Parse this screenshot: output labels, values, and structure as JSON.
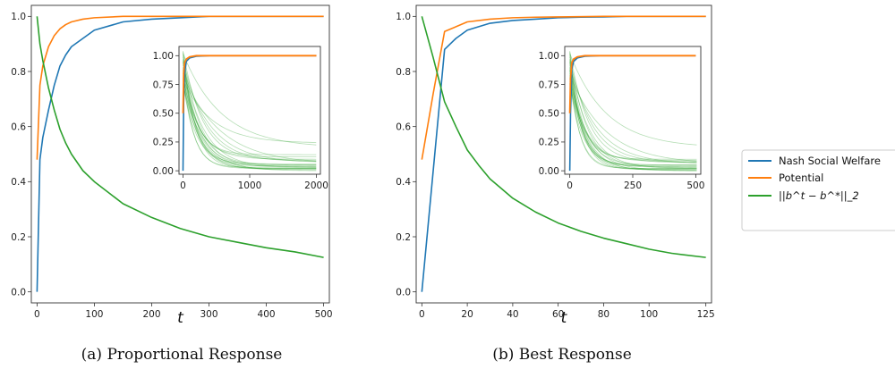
{
  "chart_data": [
    {
      "type": "line",
      "caption": "(a) Proportional Response",
      "xlabel": "t",
      "xlim": [
        -10,
        510
      ],
      "ylim": [
        -0.04,
        1.04
      ],
      "xticks": [
        0,
        100,
        200,
        300,
        400,
        500
      ],
      "yticks": [
        0.0,
        0.2,
        0.4,
        0.6,
        0.8,
        1.0
      ],
      "series": [
        {
          "name": "Nash Social Welfare",
          "color": "#1f77b4",
          "x": [
            0,
            5,
            10,
            20,
            30,
            40,
            50,
            60,
            80,
            100,
            150,
            200,
            300,
            400,
            500
          ],
          "y": [
            0.0,
            0.48,
            0.56,
            0.66,
            0.75,
            0.82,
            0.86,
            0.89,
            0.92,
            0.95,
            0.98,
            0.99,
            1.0,
            1.0,
            1.0
          ]
        },
        {
          "name": "Potential",
          "color": "#ff7f0e",
          "x": [
            0,
            5,
            10,
            20,
            30,
            40,
            50,
            60,
            80,
            100,
            150,
            200,
            300,
            400,
            500
          ],
          "y": [
            0.48,
            0.75,
            0.82,
            0.89,
            0.93,
            0.955,
            0.97,
            0.98,
            0.99,
            0.995,
            1.0,
            1.0,
            1.0,
            1.0,
            1.0
          ]
        },
        {
          "name": "||b^t − b^*||_2",
          "color": "#2ca02c",
          "x": [
            0,
            5,
            10,
            20,
            30,
            40,
            50,
            60,
            80,
            100,
            150,
            200,
            250,
            300,
            350,
            400,
            450,
            500
          ],
          "y": [
            1.0,
            0.9,
            0.84,
            0.74,
            0.66,
            0.59,
            0.54,
            0.5,
            0.44,
            0.4,
            0.32,
            0.27,
            0.23,
            0.2,
            0.18,
            0.16,
            0.145,
            0.125
          ]
        }
      ],
      "inset": {
        "xlim": [
          -60,
          2060
        ],
        "ylim": [
          -0.03,
          1.08
        ],
        "xticks": [
          0,
          1000,
          2000
        ],
        "yticks": [
          0.0,
          0.25,
          0.5,
          0.75,
          1.0
        ],
        "ytick_labels": [
          "0.00",
          "0.25",
          "0.50",
          "0.75",
          "1.00"
        ],
        "nash": {
          "x": [
            0,
            10,
            25,
            50,
            100,
            200,
            400,
            2000
          ],
          "y": [
            0.0,
            0.6,
            0.85,
            0.95,
            0.98,
            0.995,
            1.0,
            1.0
          ]
        },
        "potential": {
          "x": [
            0,
            10,
            25,
            50,
            100,
            200,
            400,
            2000
          ],
          "y": [
            0.5,
            0.85,
            0.94,
            0.97,
            0.99,
            1.0,
            1.0,
            1.0
          ]
        },
        "finals": [
          0.0,
          0.01,
          0.01,
          0.02,
          0.02,
          0.02,
          0.03,
          0.03,
          0.03,
          0.04,
          0.04,
          0.05,
          0.05,
          0.06,
          0.06,
          0.07,
          0.08,
          0.09,
          0.1,
          0.12,
          0.14,
          0.2,
          0.24
        ]
      }
    },
    {
      "type": "line",
      "caption": "(b) Best Response",
      "xlabel": "t",
      "xlim": [
        -2.5,
        127.5
      ],
      "ylim": [
        -0.04,
        1.04
      ],
      "xticks": [
        0,
        20,
        40,
        60,
        80,
        100,
        125
      ],
      "yticks": [
        0.0,
        0.2,
        0.4,
        0.6,
        0.8,
        1.0
      ],
      "series": [
        {
          "name": "Nash Social Welfare",
          "color": "#1f77b4",
          "x": [
            0,
            5,
            10,
            15,
            20,
            30,
            40,
            50,
            60,
            70,
            80,
            90,
            100,
            125
          ],
          "y": [
            0.0,
            0.44,
            0.88,
            0.92,
            0.95,
            0.975,
            0.985,
            0.99,
            0.995,
            0.997,
            0.998,
            1.0,
            1.0,
            1.0
          ]
        },
        {
          "name": "Potential",
          "color": "#ff7f0e",
          "x": [
            0,
            5,
            10,
            20,
            30,
            40,
            50,
            60,
            80,
            100,
            125
          ],
          "y": [
            0.48,
            0.72,
            0.945,
            0.98,
            0.99,
            0.995,
            0.997,
            0.998,
            1.0,
            1.0,
            1.0
          ]
        },
        {
          "name": "||b^t − b^*||_2",
          "color": "#2ca02c",
          "x": [
            0,
            5,
            10,
            15,
            20,
            25,
            30,
            35,
            40,
            45,
            50,
            60,
            70,
            80,
            90,
            100,
            110,
            125
          ],
          "y": [
            1.0,
            0.85,
            0.69,
            0.6,
            0.515,
            0.46,
            0.41,
            0.375,
            0.34,
            0.315,
            0.29,
            0.25,
            0.22,
            0.195,
            0.175,
            0.155,
            0.14,
            0.125
          ]
        }
      ],
      "inset": {
        "xlim": [
          -20,
          520
        ],
        "ylim": [
          -0.03,
          1.08
        ],
        "xticks": [
          0,
          250,
          500
        ],
        "yticks": [
          0.0,
          0.25,
          0.5,
          0.75,
          1.0
        ],
        "ytick_labels": [
          "0.00",
          "0.25",
          "0.50",
          "0.75",
          "1.00"
        ],
        "nash": {
          "x": [
            0,
            3,
            8,
            15,
            30,
            60,
            120,
            500
          ],
          "y": [
            0.0,
            0.5,
            0.88,
            0.95,
            0.98,
            0.995,
            1.0,
            1.0
          ]
        },
        "potential": {
          "x": [
            0,
            3,
            8,
            15,
            30,
            60,
            120,
            500
          ],
          "y": [
            0.5,
            0.8,
            0.94,
            0.97,
            0.99,
            1.0,
            1.0,
            1.0
          ]
        },
        "finals": [
          0.0,
          0.0,
          0.01,
          0.01,
          0.01,
          0.02,
          0.02,
          0.02,
          0.03,
          0.03,
          0.04,
          0.04,
          0.05,
          0.05,
          0.06,
          0.06,
          0.07,
          0.07,
          0.08,
          0.09,
          0.1,
          0.2
        ]
      }
    }
  ],
  "legend": [
    {
      "label": "Nash Social Welfare",
      "color": "#1f77b4"
    },
    {
      "label": "Potential",
      "color": "#ff7f0e"
    },
    {
      "label": "||b^t − b^*||_2",
      "color": "#2ca02c"
    }
  ]
}
